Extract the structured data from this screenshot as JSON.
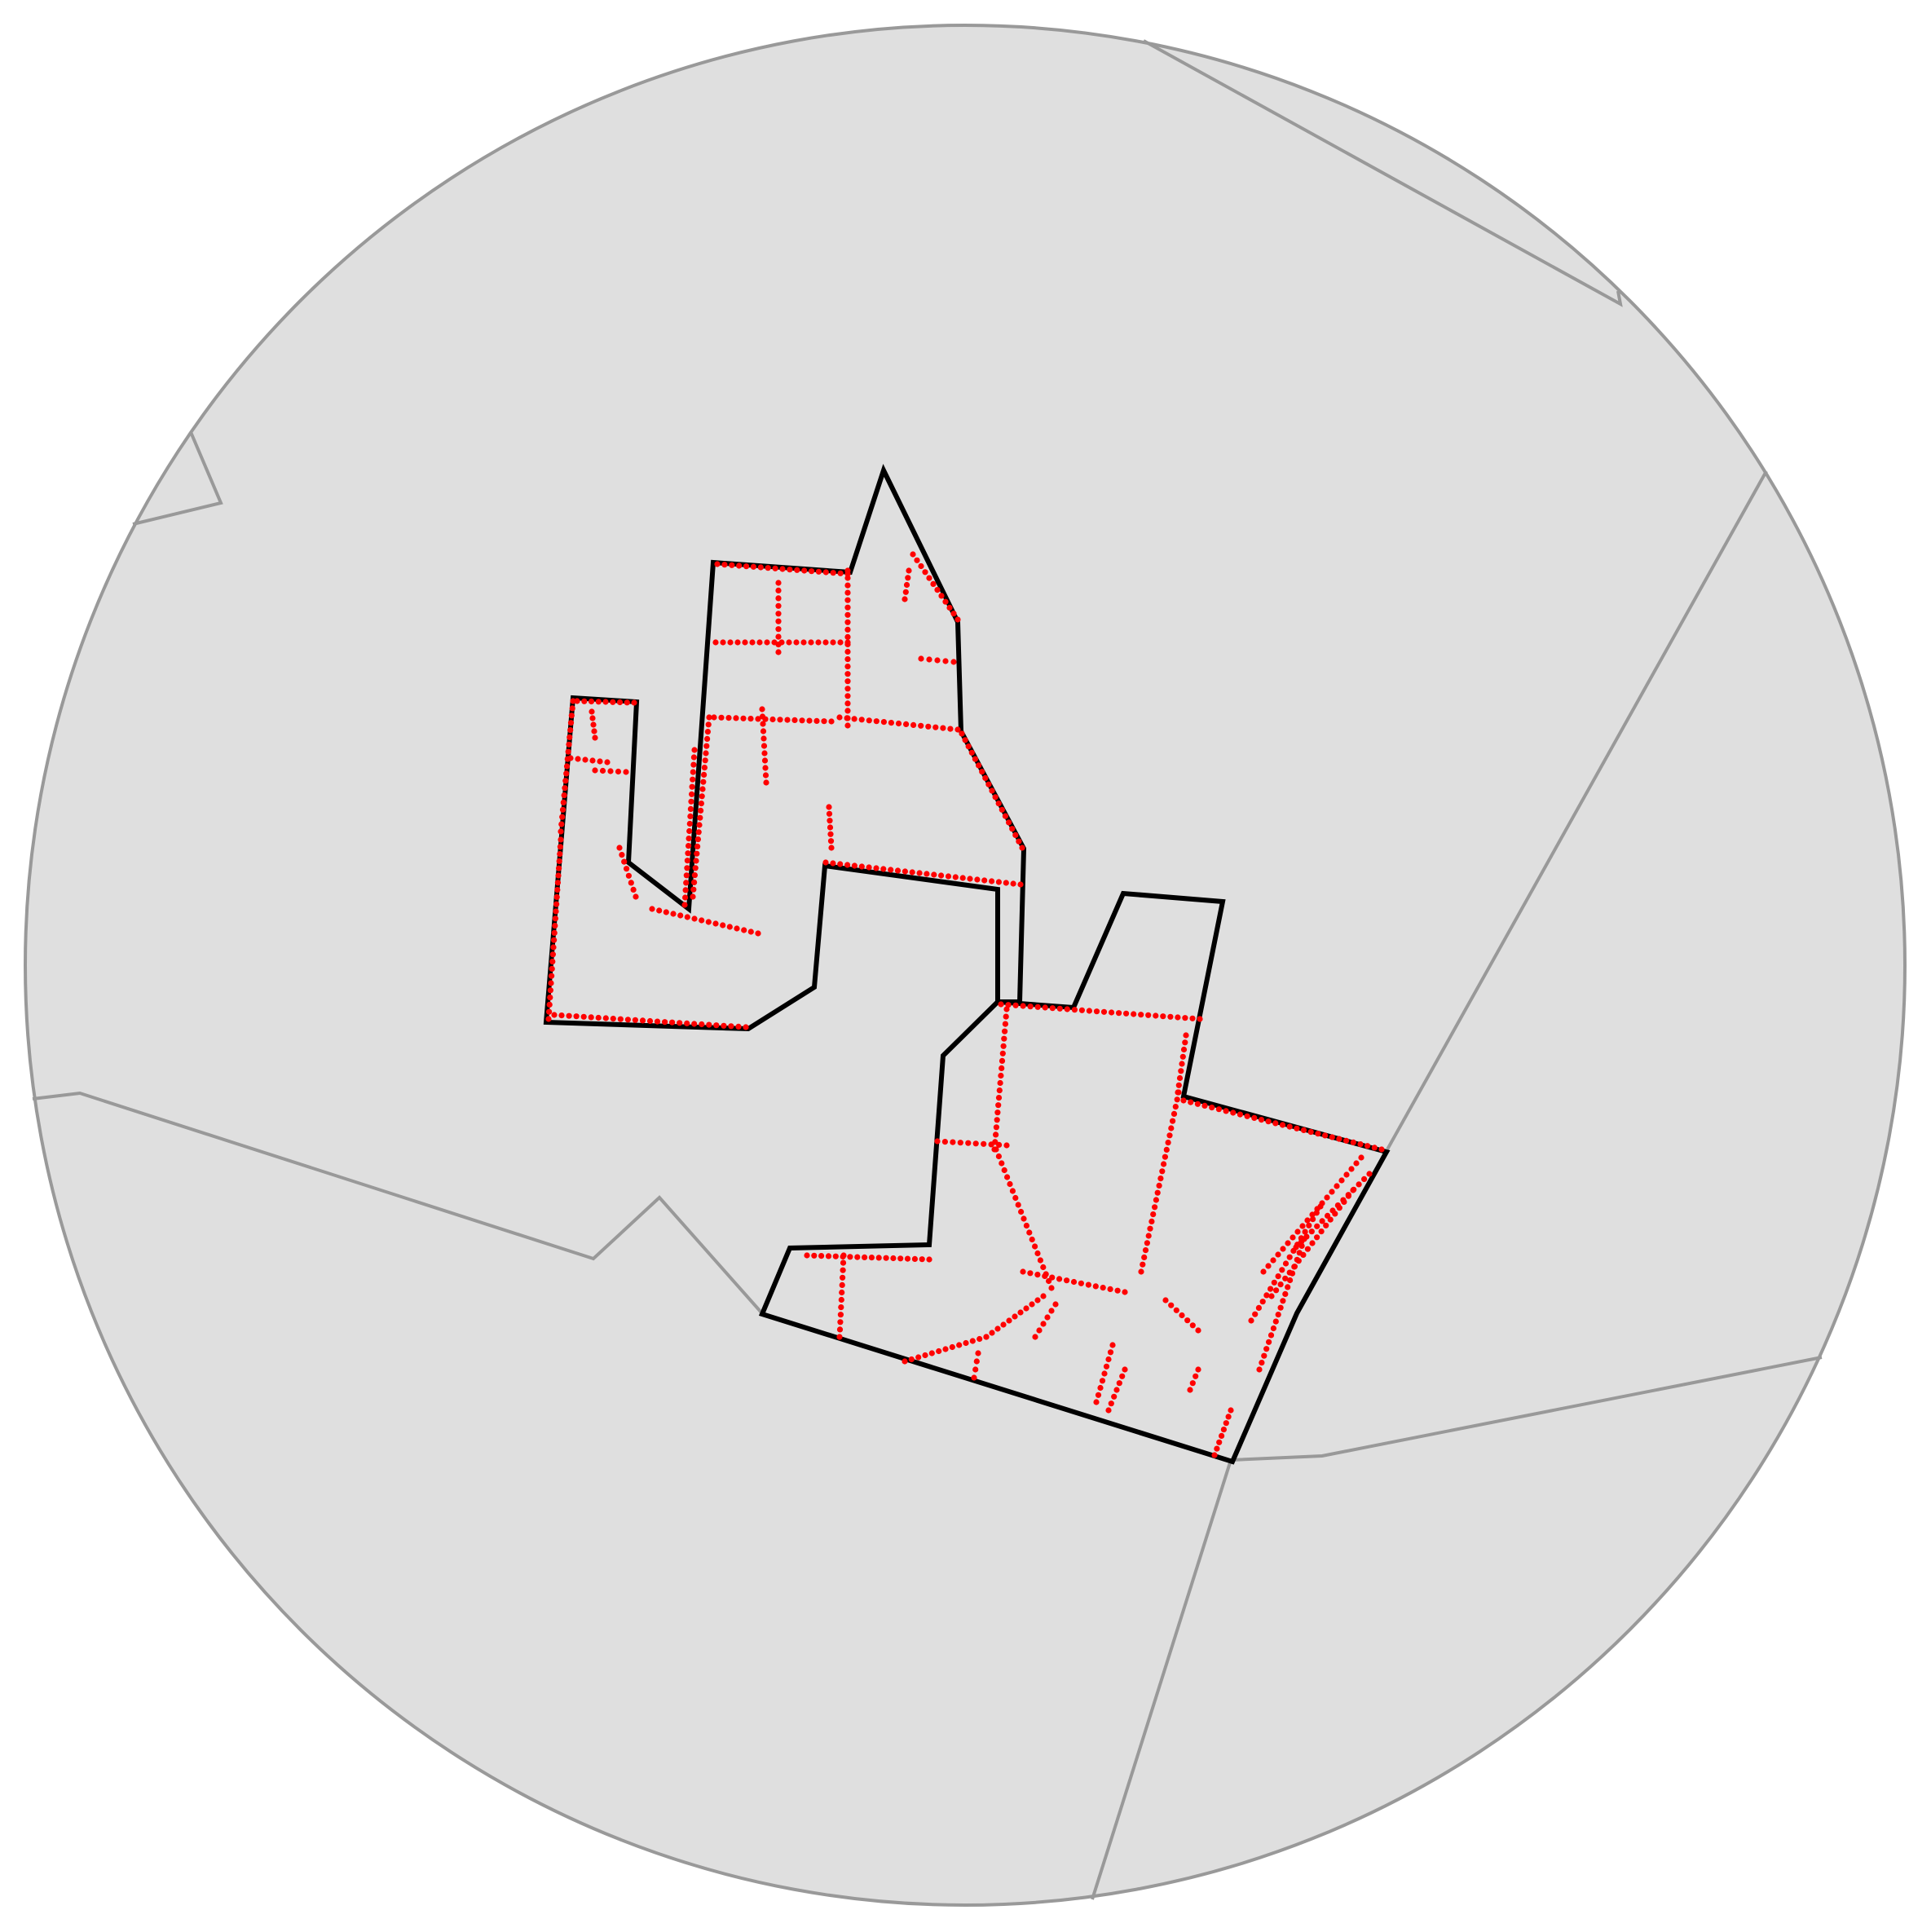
{
  "map": {
    "background_color": "#ffffff",
    "region_fill": "#dfdfdf",
    "region_stroke": "#999999",
    "boundary_stroke": "#000000",
    "point_color": "#ff0000",
    "layers": [
      "circular-extent",
      "neighboring-region-boundaries",
      "study-area-boundary",
      "point-features"
    ]
  }
}
